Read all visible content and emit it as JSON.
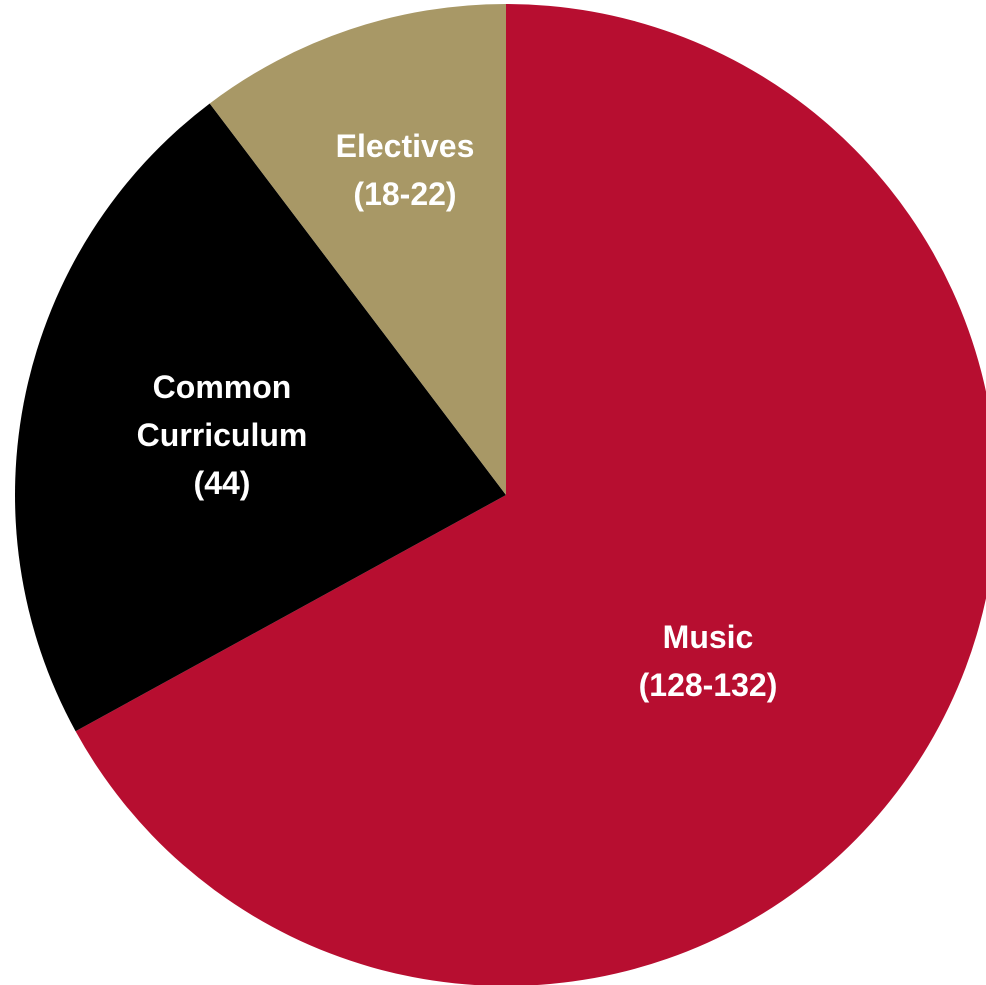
{
  "chart_data": {
    "type": "pie",
    "start_angle_deg": 0,
    "direction": "clockwise",
    "slices": [
      {
        "name": "Music",
        "value": 130,
        "label_lines": [
          "Music",
          "(128-132)"
        ],
        "color": "#B70E30",
        "text_color": "#FFFFFF"
      },
      {
        "name": "Common Curriculum",
        "value": 44,
        "label_lines": [
          "Common",
          "Curriculum",
          "(44)"
        ],
        "color": "#000000",
        "text_color": "#FFFFFF"
      },
      {
        "name": "Electives",
        "value": 20,
        "label_lines": [
          "Electives",
          "(18-22)"
        ],
        "color": "#A89866",
        "text_color": "#FFFFFF"
      }
    ]
  }
}
